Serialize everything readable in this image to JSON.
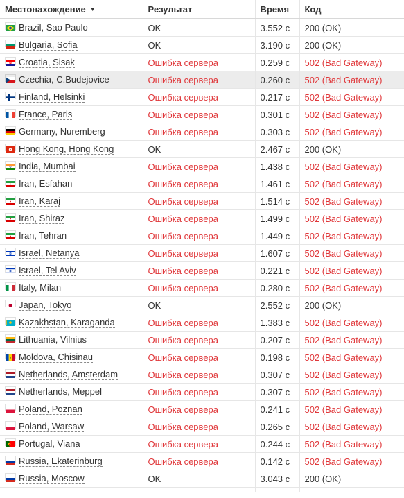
{
  "columns": {
    "location": "Местонахождение",
    "location_sort_icon": "caret-down-icon",
    "result": "Результат",
    "time": "Время",
    "code": "Код"
  },
  "colors": {
    "error_text": "#e0383b",
    "row_selected": "#ececec",
    "grid": "#e6e6e6"
  },
  "rows": [
    {
      "location": "Brazil, Sao Paulo",
      "flag": "brazil-flag-icon",
      "result": "OK",
      "time": "3.552 с",
      "code": "200 (OK)",
      "error": false
    },
    {
      "location": "Bulgaria, Sofia",
      "flag": "bulgaria-flag-icon",
      "result": "OK",
      "time": "3.190 с",
      "code": "200 (OK)",
      "error": false
    },
    {
      "location": "Croatia, Sisak",
      "flag": "croatia-flag-icon",
      "result": "Ошибка сервера",
      "time": "0.259 с",
      "code": "502 (Bad Gateway)",
      "error": true
    },
    {
      "location": "Czechia, C.Budejovice",
      "flag": "czechia-flag-icon",
      "result": "Ошибка сервера",
      "time": "0.260 с",
      "code": "502 (Bad Gateway)",
      "error": true,
      "selected": true
    },
    {
      "location": "Finland, Helsinki",
      "flag": "finland-flag-icon",
      "result": "Ошибка сервера",
      "time": "0.217 с",
      "code": "502 (Bad Gateway)",
      "error": true
    },
    {
      "location": "France, Paris",
      "flag": "france-flag-icon",
      "result": "Ошибка сервера",
      "time": "0.301 с",
      "code": "502 (Bad Gateway)",
      "error": true
    },
    {
      "location": "Germany, Nuremberg",
      "flag": "germany-flag-icon",
      "result": "Ошибка сервера",
      "time": "0.303 с",
      "code": "502 (Bad Gateway)",
      "error": true
    },
    {
      "location": "Hong Kong, Hong Kong",
      "flag": "hong-kong-flag-icon",
      "result": "OK",
      "time": "2.467 с",
      "code": "200 (OK)",
      "error": false
    },
    {
      "location": "India, Mumbai",
      "flag": "india-flag-icon",
      "result": "Ошибка сервера",
      "time": "1.438 с",
      "code": "502 (Bad Gateway)",
      "error": true
    },
    {
      "location": "Iran, Esfahan",
      "flag": "iran-flag-icon",
      "result": "Ошибка сервера",
      "time": "1.461 с",
      "code": "502 (Bad Gateway)",
      "error": true
    },
    {
      "location": "Iran, Karaj",
      "flag": "iran-flag-icon",
      "result": "Ошибка сервера",
      "time": "1.514 с",
      "code": "502 (Bad Gateway)",
      "error": true
    },
    {
      "location": "Iran, Shiraz",
      "flag": "iran-flag-icon",
      "result": "Ошибка сервера",
      "time": "1.499 с",
      "code": "502 (Bad Gateway)",
      "error": true
    },
    {
      "location": "Iran, Tehran",
      "flag": "iran-flag-icon",
      "result": "Ошибка сервера",
      "time": "1.449 с",
      "code": "502 (Bad Gateway)",
      "error": true
    },
    {
      "location": "Israel, Netanya",
      "flag": "israel-flag-icon",
      "result": "Ошибка сервера",
      "time": "1.607 с",
      "code": "502 (Bad Gateway)",
      "error": true
    },
    {
      "location": "Israel, Tel Aviv",
      "flag": "israel-flag-icon",
      "result": "Ошибка сервера",
      "time": "0.221 с",
      "code": "502 (Bad Gateway)",
      "error": true
    },
    {
      "location": "Italy, Milan",
      "flag": "italy-flag-icon",
      "result": "Ошибка сервера",
      "time": "0.280 с",
      "code": "502 (Bad Gateway)",
      "error": true
    },
    {
      "location": "Japan, Tokyo",
      "flag": "japan-flag-icon",
      "result": "OK",
      "time": "2.552 с",
      "code": "200 (OK)",
      "error": false
    },
    {
      "location": "Kazakhstan, Karaganda",
      "flag": "kazakhstan-flag-icon",
      "result": "Ошибка сервера",
      "time": "1.383 с",
      "code": "502 (Bad Gateway)",
      "error": true
    },
    {
      "location": "Lithuania, Vilnius",
      "flag": "lithuania-flag-icon",
      "result": "Ошибка сервера",
      "time": "0.207 с",
      "code": "502 (Bad Gateway)",
      "error": true
    },
    {
      "location": "Moldova, Chisinau",
      "flag": "moldova-flag-icon",
      "result": "Ошибка сервера",
      "time": "0.198 с",
      "code": "502 (Bad Gateway)",
      "error": true
    },
    {
      "location": "Netherlands, Amsterdam",
      "flag": "netherlands-flag-icon",
      "result": "Ошибка сервера",
      "time": "0.307 с",
      "code": "502 (Bad Gateway)",
      "error": true
    },
    {
      "location": "Netherlands, Meppel",
      "flag": "netherlands-flag-icon",
      "result": "Ошибка сервера",
      "time": "0.307 с",
      "code": "502 (Bad Gateway)",
      "error": true
    },
    {
      "location": "Poland, Poznan",
      "flag": "poland-flag-icon",
      "result": "Ошибка сервера",
      "time": "0.241 с",
      "code": "502 (Bad Gateway)",
      "error": true
    },
    {
      "location": "Poland, Warsaw",
      "flag": "poland-flag-icon",
      "result": "Ошибка сервера",
      "time": "0.265 с",
      "code": "502 (Bad Gateway)",
      "error": true
    },
    {
      "location": "Portugal, Viana",
      "flag": "portugal-flag-icon",
      "result": "Ошибка сервера",
      "time": "0.244 с",
      "code": "502 (Bad Gateway)",
      "error": true
    },
    {
      "location": "Russia, Ekaterinburg",
      "flag": "russia-flag-icon",
      "result": "Ошибка сервера",
      "time": "0.142 с",
      "code": "502 (Bad Gateway)",
      "error": true
    },
    {
      "location": "Russia, Moscow",
      "flag": "russia-flag-icon",
      "result": "OK",
      "time": "3.043 с",
      "code": "200 (OK)",
      "error": false
    }
  ]
}
